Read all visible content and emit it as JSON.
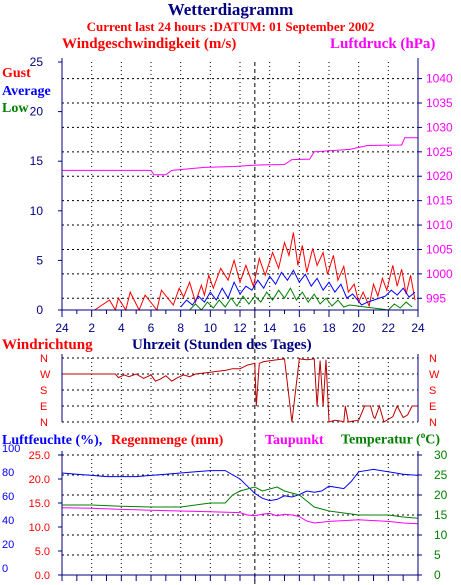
{
  "header": {
    "title": "Wetterdiagramm",
    "subtitle": "Current last 24 hours :DATUM: 01 September 2002"
  },
  "colors": {
    "navy": "#000080",
    "red": "#ff0000",
    "blue": "#0000ff",
    "green": "#008000",
    "magenta": "#ff00ff",
    "darkred": "#c00000"
  },
  "wind_panel": {
    "left_label": "Windgeschwindigkeit (m/s)",
    "right_label": "Luftdruck (hPa)",
    "legend": [
      "Gust",
      "Average",
      "Low"
    ]
  },
  "direction_panel": {
    "left_label": "Windrichtung",
    "center_label": "Uhrzeit (Stunden des Tages)"
  },
  "humidity_panel": {
    "label_humidity": "Luftfeuchte (%),",
    "label_rain": "Regenmenge (mm)",
    "label_dewpoint": "Taupunkt",
    "label_temperature": "Temperatur (",
    "temperature_unit": "C)"
  },
  "chart_data": [
    {
      "type": "line",
      "x_ticks": [
        "24",
        "2",
        "4",
        "6",
        "8",
        "10",
        "12",
        "14",
        "16",
        "18",
        "20",
        "22",
        "24"
      ],
      "y_left": {
        "label": "Windgeschwindigkeit (m/s)",
        "ticks": [
          "0",
          "5",
          "10",
          "15",
          "20",
          "25"
        ],
        "ylim": [
          0,
          25
        ]
      },
      "y_right": {
        "label": "Luftdruck (hPa)",
        "ticks": [
          "995",
          "1000",
          "1005",
          "1010",
          "1015",
          "1020",
          "1025",
          "1030",
          "1035",
          "1040"
        ],
        "ylim": [
          992.6,
          1043.4
        ]
      },
      "series": [
        {
          "name": "Luftdruck (hPa)",
          "axis": "right",
          "color": "#ff00ff",
          "x": [
            0,
            6,
            6.2,
            7,
            7.4,
            9.6,
            11.6,
            13.2,
            15,
            15.5,
            16.7,
            17,
            19.4,
            20.6,
            22.9,
            23.1,
            24
          ],
          "y": [
            1021.2,
            1021.2,
            1020.3,
            1020.3,
            1021.2,
            1021.8,
            1022.0,
            1022.3,
            1022.4,
            1023.4,
            1023.5,
            1025.0,
            1025.5,
            1026.3,
            1026.4,
            1027.9,
            1027.9
          ]
        },
        {
          "name": "Gust",
          "axis": "left",
          "color": "#ff0000",
          "x": [
            2.2,
            3.2,
            3.6,
            3.8,
            4.3,
            4.6,
            5.2,
            5.6,
            6.4,
            6.7,
            7.5,
            7.9,
            8.2,
            8.6,
            9.0,
            9.4,
            9.6,
            9.9,
            10.2,
            10.7,
            11.2,
            11.6,
            12.0,
            12.4,
            12.9,
            13.3,
            13.7,
            14.2,
            14.6,
            15.0,
            15.3,
            15.6,
            15.9,
            16.2,
            16.5,
            16.9,
            17.2,
            17.6,
            17.9,
            18.3,
            18.6,
            19.0,
            19.3,
            19.7,
            20.0,
            20.3,
            20.7,
            21.0,
            21.3,
            21.6,
            21.9,
            22.3,
            22.6,
            22.9,
            23.2,
            23.5,
            23.8
          ],
          "y": [
            0,
            1.0,
            0,
            1.2,
            0,
            1.8,
            0,
            1.5,
            0,
            2.0,
            0.5,
            2.2,
            1.3,
            2.8,
            0.8,
            2.5,
            1.5,
            3.5,
            2.2,
            4.2,
            3.0,
            5.0,
            2.8,
            4.5,
            2.4,
            5.2,
            3.5,
            5.8,
            4.2,
            6.8,
            5.5,
            7.8,
            4.5,
            6.5,
            3.8,
            6.2,
            4.5,
            5.8,
            3.6,
            5.5,
            3.0,
            4.4,
            1.8,
            2.6,
            0.8,
            1.8,
            0.4,
            2.6,
            1.4,
            3.2,
            2.0,
            4.5,
            2.4,
            4.1,
            1.6,
            3.5,
            1.0
          ]
        },
        {
          "name": "Average",
          "axis": "left",
          "color": "#0000ff",
          "x": [
            8.0,
            8.4,
            8.8,
            9.2,
            9.6,
            10.0,
            10.4,
            10.8,
            11.2,
            11.6,
            12.0,
            12.4,
            12.8,
            13.2,
            13.6,
            14.0,
            14.4,
            14.8,
            15.2,
            15.6,
            16.0,
            16.4,
            16.8,
            17.2,
            17.6,
            18.0,
            18.4,
            18.8,
            19.2,
            19.6,
            20.2,
            20.6,
            21.0,
            21.4,
            21.8,
            22.2,
            22.6,
            23.0,
            23.4,
            23.8
          ],
          "y": [
            0.3,
            1.0,
            0.5,
            1.4,
            0.8,
            1.8,
            1.0,
            2.2,
            1.2,
            2.8,
            1.6,
            2.4,
            2.0,
            3.0,
            2.2,
            3.4,
            2.6,
            3.8,
            3.0,
            4.0,
            2.8,
            3.6,
            2.4,
            3.2,
            2.0,
            2.8,
            1.8,
            2.6,
            1.2,
            1.6,
            0.5,
            0.8,
            1.0,
            1.2,
            1.4,
            2.0,
            1.5,
            2.2,
            1.3,
            1.8
          ]
        },
        {
          "name": "Low",
          "axis": "left",
          "color": "#008000",
          "x": [
            8.6,
            9.0,
            9.4,
            9.8,
            10.2,
            10.6,
            11.0,
            11.4,
            11.8,
            12.2,
            12.6,
            13.0,
            13.4,
            13.8,
            14.2,
            14.6,
            15.0,
            15.4,
            15.8,
            16.2,
            16.6,
            17.0,
            17.4,
            17.8,
            18.2,
            18.6,
            19.0,
            19.4,
            22.0,
            22.4,
            22.8,
            23.2,
            23.6
          ],
          "y": [
            0,
            0.6,
            0,
            0.8,
            0.2,
            1.0,
            0.3,
            1.2,
            0.4,
            1.4,
            0.6,
            1.4,
            0.8,
            1.8,
            1.0,
            2.0,
            1.2,
            2.2,
            1.0,
            1.8,
            0.8,
            1.6,
            0.6,
            1.2,
            0.4,
            1.0,
            0.3,
            0.5,
            0,
            0.6,
            0.2,
            0.8,
            0.3
          ]
        }
      ]
    },
    {
      "type": "line",
      "y_ticks": [
        "N",
        "W",
        "S",
        "E",
        "N"
      ],
      "series": [
        {
          "name": "Windrichtung",
          "color": "#c00000",
          "x": [
            0,
            3.6,
            3.8,
            4.2,
            4.5,
            5.0,
            5.5,
            6.0,
            6.3,
            6.6,
            7.0,
            7.4,
            7.8,
            8.2,
            8.6,
            9.0,
            9.5,
            10.0,
            10.5,
            11.0,
            11.5,
            12.0,
            12.5,
            13.0,
            13.1,
            13.3,
            13.6,
            14.0,
            14.5,
            15.0,
            15.5,
            16.0,
            16.5,
            17.0,
            17.2,
            17.4,
            17.6,
            17.8,
            18.0,
            18.4,
            18.8,
            19.0,
            19.1,
            19.3,
            19.6,
            20.0,
            20.4,
            20.8,
            21.0,
            21.1,
            21.4,
            21.7,
            22.0,
            22.3,
            22.6,
            23.0,
            23.3,
            23.6,
            24.0
          ],
          "y": [
            "W",
            "W",
            "W",
            "W",
            "W",
            "W",
            "W",
            "W",
            "W",
            "W",
            "W",
            "W",
            "W",
            "W",
            "W",
            "W",
            "W",
            "W",
            "W",
            "W",
            "W",
            "W",
            "N",
            "N",
            "E",
            "N",
            "N",
            "N",
            "N",
            "N",
            "N",
            "N",
            "N",
            "N",
            "E",
            "N",
            "E",
            "N",
            "N",
            "N",
            "N",
            "N",
            "E",
            "N",
            "N",
            "N",
            "E",
            "E",
            "N",
            "N",
            "E",
            "N",
            "N",
            "N",
            "E",
            "N",
            "N",
            "E",
            "E"
          ],
          "note_values_deg": [
            270,
            270,
            250,
            265,
            255,
            270,
            245,
            265,
            230,
            240,
            260,
            230,
            250,
            265,
            255,
            270,
            275,
            280,
            285,
            290,
            300,
            300,
            320,
            330,
            90,
            330,
            340,
            345,
            350,
            355,
            0,
            355,
            350,
            355,
            90,
            345,
            90,
            350,
            0,
            10,
            5,
            0,
            90,
            0,
            5,
            10,
            90,
            90,
            30,
            20,
            90,
            0,
            15,
            30,
            90,
            25,
            40,
            90,
            90
          ]
        }
      ]
    },
    {
      "type": "line",
      "y_left": {
        "label": "Luftfeuchte (%), Regenmenge (mm)",
        "ticks_humidity": [
          "0",
          "20",
          "40",
          "60",
          "80",
          "100"
        ],
        "ticks_rain": [
          "0.0",
          "5.0",
          "10.0",
          "15.0",
          "20.0",
          "25.0"
        ],
        "ylim_humidity": [
          0,
          100
        ],
        "ylim_rain": [
          0,
          25
        ]
      },
      "y_right": {
        "label": "Temperatur (°C)",
        "ticks": [
          "0",
          "5",
          "10",
          "15",
          "20",
          "25",
          "30"
        ],
        "ylim": [
          0,
          30
        ]
      },
      "series": [
        {
          "name": "Luftfeuchte (%)",
          "axis": "left",
          "color": "#0000ff",
          "x": [
            0,
            1,
            2,
            3,
            4,
            5,
            6,
            7,
            8,
            9,
            10,
            11,
            12,
            12.5,
            13,
            13.5,
            14,
            14.5,
            15,
            15.5,
            16,
            16.5,
            17,
            17.5,
            18,
            18.5,
            19,
            19.5,
            20,
            21,
            22,
            23,
            24
          ],
          "y": [
            85,
            84,
            83,
            82,
            82,
            82,
            83,
            84,
            85,
            86,
            87,
            87,
            80,
            74,
            68,
            64,
            62,
            63,
            66,
            65,
            67,
            70,
            69,
            70,
            74,
            73,
            72,
            78,
            86,
            88,
            86,
            84,
            83
          ]
        },
        {
          "name": "Regenmenge (mm)",
          "axis": "left",
          "color": "#ff0000",
          "x": [
            0,
            24
          ],
          "y": [
            0,
            0
          ]
        },
        {
          "name": "Taupunkt",
          "axis": "right",
          "color": "#ff00ff",
          "x": [
            0,
            2,
            4,
            6,
            8,
            10,
            12,
            12.5,
            13,
            13.5,
            14,
            14.5,
            15,
            15.5,
            16,
            16.5,
            17,
            17.5,
            18,
            19,
            20,
            21,
            22,
            23,
            24
          ],
          "y": [
            16.8,
            16.7,
            16.4,
            16.2,
            16.0,
            15.8,
            15.6,
            15.0,
            14.8,
            15.2,
            15.4,
            14.8,
            15.2,
            15.0,
            14.6,
            13.5,
            13.0,
            13.2,
            13.4,
            13.6,
            13.8,
            13.6,
            13.4,
            13.0,
            12.8
          ]
        },
        {
          "name": "Temperatur (°C)",
          "axis": "right",
          "color": "#008000",
          "x": [
            0,
            2,
            4,
            6,
            8,
            9,
            10,
            11,
            11.5,
            12,
            12.5,
            13,
            13.5,
            14,
            14.5,
            15,
            15.5,
            16,
            16.5,
            17,
            17.5,
            18,
            19,
            20,
            21,
            22,
            23,
            24
          ],
          "y": [
            17.5,
            17.5,
            17.2,
            17.0,
            17.0,
            17.5,
            18.0,
            18.0,
            20.0,
            21.0,
            21.5,
            22.0,
            21.0,
            21.5,
            22.0,
            21.0,
            20.5,
            20.0,
            18.5,
            17.0,
            16.5,
            16.0,
            15.5,
            15.0,
            15.0,
            15.0,
            14.5,
            14.2
          ]
        }
      ]
    }
  ]
}
